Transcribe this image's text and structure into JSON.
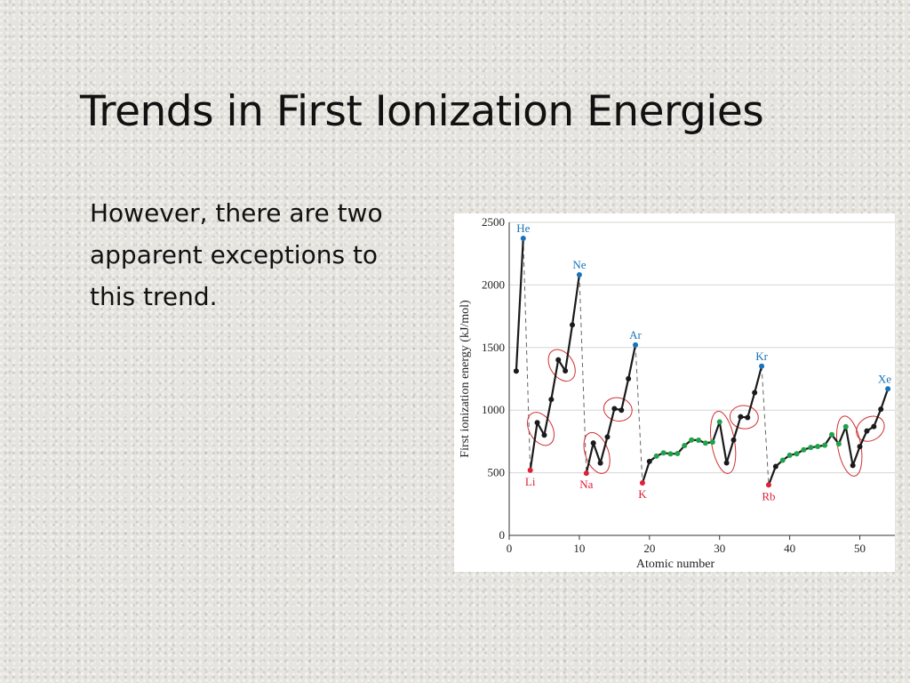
{
  "slide": {
    "title": "Trends in First Ionization Energies",
    "body_text": "However, there are two apparent exceptions to this trend."
  },
  "colors": {
    "noble_gas": "#1a73b8",
    "alkali_metal": "#e0203a",
    "transition_metal": "#1fa24a",
    "other": "#1a1a1a",
    "ring": "#d03030"
  },
  "chart_data": {
    "type": "line",
    "xlabel": "Atomic number",
    "ylabel": "First ionization energy (kJ/mol)",
    "xlim": [
      0,
      55
    ],
    "ylim": [
      0,
      2500
    ],
    "xticks": [
      0,
      10,
      20,
      30,
      40,
      50
    ],
    "yticks": [
      0,
      500,
      1000,
      1500,
      2000,
      2500
    ],
    "grid": "horizontal",
    "series": [
      {
        "x": [
          1,
          2,
          3,
          4,
          5,
          6,
          7,
          8,
          9,
          10,
          11,
          12,
          13,
          14,
          15,
          16,
          17,
          18,
          19,
          20,
          21,
          22,
          23,
          24,
          25,
          26,
          27,
          28,
          29,
          30,
          31,
          32,
          33,
          34,
          35,
          36,
          37,
          38,
          39,
          40,
          41,
          42,
          43,
          44,
          45,
          46,
          47,
          48,
          49,
          50,
          51,
          52,
          53,
          54
        ],
        "values": [
          1312,
          2372,
          520,
          900,
          801,
          1086,
          1402,
          1314,
          1681,
          2081,
          496,
          738,
          578,
          786,
          1012,
          1000,
          1251,
          1521,
          419,
          590,
          633,
          659,
          651,
          653,
          717,
          762,
          760,
          737,
          745,
          906,
          579,
          762,
          947,
          941,
          1140,
          1351,
          403,
          550,
          600,
          640,
          652,
          684,
          702,
          710,
          720,
          804,
          731,
          868,
          558,
          709,
          834,
          869,
          1008,
          1170
        ],
        "groups": [
          "o",
          "n",
          "a",
          "o",
          "o",
          "o",
          "o",
          "o",
          "o",
          "n",
          "a",
          "o",
          "o",
          "o",
          "o",
          "o",
          "o",
          "n",
          "a",
          "o",
          "t",
          "t",
          "t",
          "t",
          "t",
          "t",
          "t",
          "t",
          "t",
          "t",
          "o",
          "o",
          "o",
          "o",
          "o",
          "n",
          "a",
          "o",
          "t",
          "t",
          "t",
          "t",
          "t",
          "t",
          "t",
          "t",
          "t",
          "t",
          "o",
          "o",
          "o",
          "o",
          "o",
          "n"
        ]
      }
    ],
    "element_labels": [
      {
        "text": "He",
        "x": 2,
        "group": "n"
      },
      {
        "text": "Ne",
        "x": 10,
        "group": "n"
      },
      {
        "text": "Ar",
        "x": 18,
        "group": "n"
      },
      {
        "text": "Kr",
        "x": 36,
        "group": "n"
      },
      {
        "text": "Xe",
        "x": 54,
        "group": "n"
      },
      {
        "text": "Li",
        "x": 3,
        "group": "a"
      },
      {
        "text": "Na",
        "x": 11,
        "group": "a"
      },
      {
        "text": "K",
        "x": 19,
        "group": "a"
      },
      {
        "text": "Rb",
        "x": 37,
        "group": "a"
      }
    ],
    "drops": [
      [
        2,
        3
      ],
      [
        10,
        11
      ],
      [
        18,
        19
      ],
      [
        36,
        37
      ]
    ],
    "highlighted_exceptions": [
      [
        4,
        5
      ],
      [
        7,
        8
      ],
      [
        12,
        13
      ],
      [
        15,
        16
      ],
      [
        30,
        31
      ],
      [
        33,
        34
      ],
      [
        48,
        49
      ],
      [
        51,
        52
      ]
    ]
  }
}
